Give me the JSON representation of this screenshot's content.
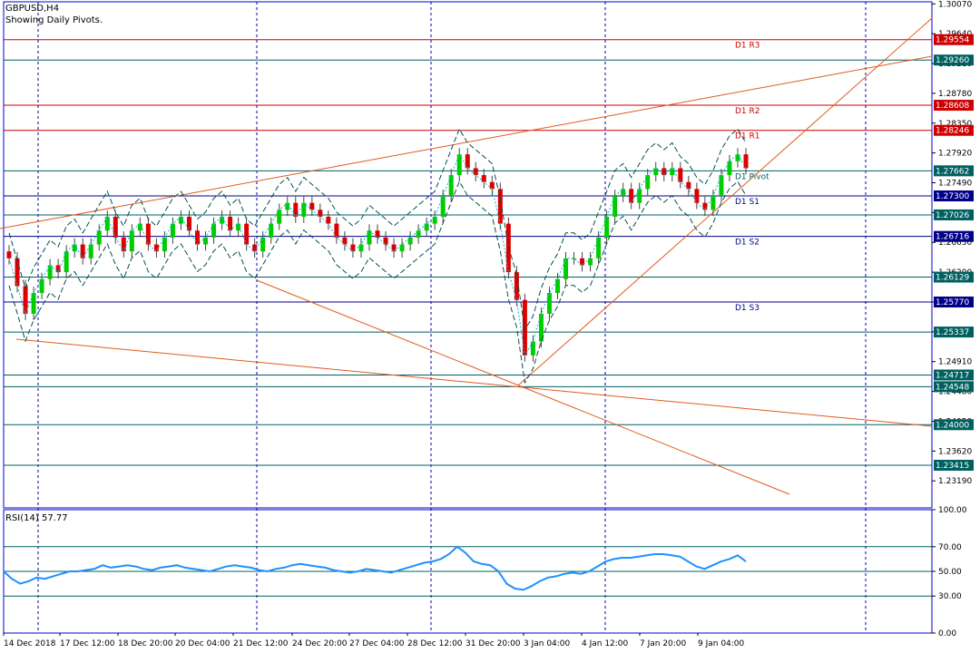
{
  "header": {
    "symbol": "GBPUSD,H4",
    "subtitle": "Showing Daily Pivots."
  },
  "rsi_panel": {
    "title": "RSI(14) 57.77"
  },
  "colors": {
    "bull": "#00cc00",
    "bear": "#dd0000",
    "wick": "#444444",
    "resistance": "#cc0000",
    "support": "#000088",
    "pivot": "#006060",
    "trendline": "#e05a20",
    "bands": "#005050",
    "envelope": "#00bbdd",
    "rsi_line": "#1e90ff",
    "grid": "#0000aa",
    "frame": "#0000cc"
  },
  "chart_data": [
    {
      "type": "candlestick",
      "title": "GBPUSD,H4",
      "ylim": [
        1.228,
        1.301
      ],
      "price_ticks": [
        "1.30070",
        "1.29640",
        "1.29210",
        "1.28780",
        "1.28350",
        "1.27920",
        "1.27490",
        "1.27060",
        "1.26630",
        "1.26200",
        "1.25770",
        "1.25340",
        "1.24910",
        "1.24480",
        "1.24050",
        "1.23620",
        "1.23190"
      ],
      "x_labels": [
        "14 Dec 2018",
        "17 Dec 12:00",
        "18 Dec 20:00",
        "20 Dec 04:00",
        "21 Dec 12:00",
        "24 Dec 20:00",
        "27 Dec 04:00",
        "28 Dec 12:00",
        "31 Dec 20:00",
        "3 Jan 04:00",
        "4 Jan 12:00",
        "7 Jan 20:00",
        "9 Jan 04:00"
      ],
      "close_series": [
        1.264,
        1.26,
        1.256,
        1.259,
        1.261,
        1.263,
        1.262,
        1.265,
        1.266,
        1.264,
        1.266,
        1.268,
        1.27,
        1.267,
        1.265,
        1.268,
        1.269,
        1.266,
        1.265,
        1.267,
        1.269,
        1.27,
        1.268,
        1.266,
        1.267,
        1.269,
        1.27,
        1.268,
        1.269,
        1.266,
        1.265,
        1.267,
        1.269,
        1.271,
        1.272,
        1.27,
        1.272,
        1.271,
        1.27,
        1.269,
        1.267,
        1.266,
        1.265,
        1.266,
        1.268,
        1.267,
        1.266,
        1.265,
        1.266,
        1.267,
        1.268,
        1.269,
        1.27,
        1.273,
        1.276,
        1.279,
        1.277,
        1.276,
        1.275,
        1.274,
        1.269,
        1.262,
        1.258,
        1.25,
        1.252,
        1.256,
        1.259,
        1.261,
        1.264,
        1.264,
        1.263,
        1.264,
        1.267,
        1.27,
        1.273,
        1.274,
        1.272,
        1.274,
        1.276,
        1.277,
        1.276,
        1.277,
        1.275,
        1.274,
        1.272,
        1.271,
        1.273,
        1.276,
        1.278,
        1.279,
        1.277
      ],
      "resistance_levels": [
        {
          "label": "D1 R3",
          "value": 1.29554,
          "price_tag": "1.29554"
        },
        {
          "label": "D1 R2",
          "value": 1.28608,
          "price_tag": "1.28608"
        },
        {
          "label": "D1 R1",
          "value": 1.28246,
          "price_tag": "1.28246"
        }
      ],
      "pivot_level": {
        "label": "D1 Pivot",
        "value": 1.27662,
        "price_tag": "1.27662"
      },
      "support_levels": [
        {
          "label": "D1 S1",
          "value": 1.273,
          "price_tag": "1.27300"
        },
        {
          "label": "D1 S2",
          "value": 1.26716,
          "price_tag": "1.26716"
        },
        {
          "label": "D1 S3",
          "value": 1.2577,
          "price_tag": "1.25770"
        }
      ],
      "other_levels": [
        {
          "value": 1.2926,
          "price_tag": "1.29260"
        },
        {
          "value": 1.27026,
          "price_tag": "1.27026"
        },
        {
          "value": 1.26129,
          "price_tag": "1.26129"
        },
        {
          "value": 1.25337,
          "price_tag": "1.25337"
        },
        {
          "value": 1.24717,
          "price_tag": "1.24717"
        },
        {
          "value": 1.24548,
          "price_tag": "1.24548"
        },
        {
          "value": 1.24,
          "price_tag": "1.24000"
        },
        {
          "value": 1.23415,
          "price_tag": "1.23415"
        }
      ]
    },
    {
      "type": "line",
      "title": "RSI(14) 57.77",
      "ylim": [
        0,
        100
      ],
      "y_ticks": [
        "100.00",
        "70.00",
        "50.00",
        "30.00",
        "0.00"
      ],
      "levels": [
        70,
        50,
        30
      ],
      "values": [
        50,
        44,
        40,
        42,
        45,
        44,
        46,
        48,
        50,
        50,
        51,
        52,
        55,
        53,
        54,
        55,
        54,
        52,
        51,
        53,
        54,
        55,
        53,
        52,
        51,
        50,
        52,
        54,
        55,
        54,
        53,
        51,
        50,
        52,
        53,
        55,
        56,
        55,
        54,
        53,
        51,
        50,
        49,
        50,
        52,
        51,
        50,
        49,
        51,
        53,
        55,
        57,
        58,
        60,
        64,
        70,
        65,
        58,
        56,
        55,
        50,
        40,
        36,
        35,
        38,
        42,
        45,
        46,
        48,
        49,
        48,
        50,
        54,
        58,
        60,
        61,
        61,
        62,
        63,
        64,
        64,
        63,
        62,
        58,
        54,
        52,
        55,
        58,
        60,
        63,
        58
      ]
    }
  ]
}
